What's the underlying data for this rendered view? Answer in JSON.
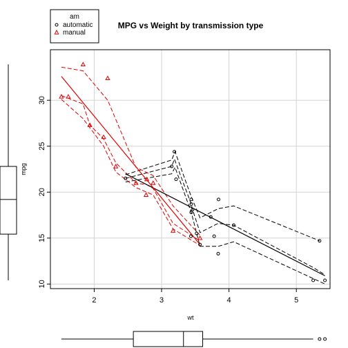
{
  "chart_data": {
    "type": "scatter",
    "title": "MPG vs Weight by transmission type",
    "xlabel": "wt",
    "ylabel": "mpg",
    "xlim": [
      1.35,
      5.5
    ],
    "ylim": [
      9.5,
      35.5
    ],
    "xticks": [
      2,
      3,
      4,
      5
    ],
    "yticks": [
      10,
      15,
      20,
      25,
      30
    ],
    "grid": true,
    "legend": {
      "title": "am",
      "placement": "top-left",
      "entries": [
        {
          "label": "automatic",
          "marker": "circle",
          "color": "#000000"
        },
        {
          "label": "manual",
          "marker": "triangle",
          "color": "#DF0000"
        }
      ]
    },
    "series": [
      {
        "name": "automatic",
        "color": "#000000",
        "marker": "circle",
        "points": [
          [
            3.215,
            21.4
          ],
          [
            3.44,
            18.7
          ],
          [
            3.46,
            18.1
          ],
          [
            3.57,
            14.3
          ],
          [
            3.19,
            24.4
          ],
          [
            3.15,
            22.8
          ],
          [
            3.44,
            19.2
          ],
          [
            3.44,
            17.8
          ],
          [
            4.07,
            16.4
          ],
          [
            3.73,
            17.3
          ],
          [
            3.78,
            15.2
          ],
          [
            5.25,
            10.4
          ],
          [
            5.424,
            10.4
          ],
          [
            5.345,
            14.7
          ],
          [
            2.465,
            21.5
          ],
          [
            3.52,
            15.5
          ],
          [
            3.435,
            15.2
          ],
          [
            3.84,
            13.3
          ],
          [
            3.845,
            19.2
          ]
        ],
        "fit_line": {
          "x": [
            2.465,
            5.424
          ],
          "y": [
            22.0,
            10.9
          ]
        },
        "smooth": [
          [
            2.465,
            21.5
          ],
          [
            3.15,
            22.8
          ],
          [
            3.19,
            23.6
          ],
          [
            3.44,
            18.7
          ],
          [
            3.46,
            18.1
          ],
          [
            3.57,
            15.6
          ],
          [
            3.84,
            16.6
          ],
          [
            4.07,
            16.4
          ],
          [
            5.25,
            11.8
          ],
          [
            5.424,
            11.0
          ]
        ],
        "smooth_upper": [
          [
            2.465,
            21.9
          ],
          [
            3.15,
            23.5
          ],
          [
            3.2,
            24.4
          ],
          [
            3.44,
            19.5
          ],
          [
            3.57,
            17.2
          ],
          [
            3.84,
            18.2
          ],
          [
            4.07,
            18.5
          ],
          [
            5.345,
            14.7
          ]
        ],
        "smooth_lower": [
          [
            2.465,
            21.1
          ],
          [
            3.15,
            22.0
          ],
          [
            3.2,
            22.7
          ],
          [
            3.44,
            17.8
          ],
          [
            3.57,
            14.1
          ],
          [
            3.84,
            14.1
          ],
          [
            4.07,
            14.6
          ],
          [
            5.424,
            10.0
          ]
        ]
      },
      {
        "name": "manual",
        "color": "#DF0000",
        "marker": "triangle",
        "points": [
          [
            2.62,
            21.0
          ],
          [
            2.875,
            21.0
          ],
          [
            2.32,
            22.8
          ],
          [
            2.2,
            32.4
          ],
          [
            1.615,
            30.4
          ],
          [
            1.835,
            33.9
          ],
          [
            1.935,
            27.3
          ],
          [
            2.14,
            26.0
          ],
          [
            1.513,
            30.4
          ],
          [
            3.17,
            15.8
          ],
          [
            2.77,
            19.7
          ],
          [
            3.57,
            15.0
          ],
          [
            2.78,
            21.4
          ]
        ],
        "fit_line": {
          "x": [
            1.513,
            3.57
          ],
          "y": [
            32.6,
            14.3
          ]
        },
        "smooth": [
          [
            1.513,
            30.5
          ],
          [
            1.835,
            29.6
          ],
          [
            1.935,
            27.3
          ],
          [
            2.14,
            25.8
          ],
          [
            2.32,
            23.2
          ],
          [
            2.62,
            21.0
          ],
          [
            2.78,
            20.8
          ],
          [
            2.875,
            20.4
          ],
          [
            3.17,
            16.6
          ],
          [
            3.57,
            14.7
          ]
        ],
        "smooth_upper": [
          [
            1.513,
            33.6
          ],
          [
            1.835,
            33.2
          ],
          [
            2.2,
            30.0
          ],
          [
            2.62,
            22.7
          ],
          [
            2.875,
            21.8
          ],
          [
            3.17,
            18.5
          ],
          [
            3.57,
            15.3
          ]
        ],
        "smooth_lower": [
          [
            1.513,
            30.1
          ],
          [
            1.835,
            28.0
          ],
          [
            2.14,
            25.0
          ],
          [
            2.32,
            22.2
          ],
          [
            2.62,
            20.5
          ],
          [
            2.875,
            19.7
          ],
          [
            3.17,
            16.0
          ],
          [
            3.57,
            14.2
          ]
        ]
      }
    ],
    "boxplot_x": {
      "min": 1.513,
      "q1": 2.581,
      "median": 3.325,
      "q3": 3.61,
      "max": 5.25,
      "outliers": [
        5.345,
        5.424
      ]
    },
    "boxplot_y": {
      "min": 10.4,
      "q1": 15.43,
      "median": 19.2,
      "q3": 22.8,
      "max": 33.9,
      "outliers": []
    }
  }
}
